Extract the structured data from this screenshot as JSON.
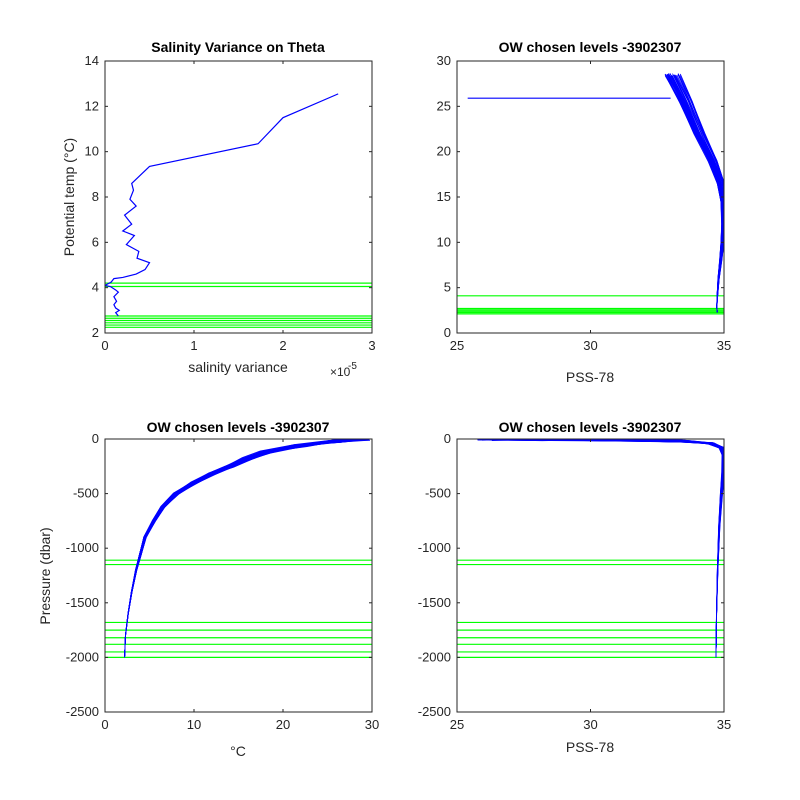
{
  "figure": {
    "background": "#ffffff",
    "axis_color": "#262626"
  },
  "chart_data": [
    {
      "type": "line",
      "title": "Salinity Variance on Theta",
      "xlabel": "salinity variance",
      "ylabel": "Potential temp (°C)",
      "xlim": [
        0,
        3
      ],
      "ylim": [
        2,
        14
      ],
      "xticks": [
        0,
        1,
        2,
        3
      ],
      "xtick_labels": [
        "0",
        "1",
        "2",
        "3"
      ],
      "yticks": [
        2,
        4,
        6,
        8,
        10,
        12,
        14
      ],
      "ytick_labels": [
        "2",
        "4",
        "6",
        "8",
        "10",
        "12",
        "14"
      ],
      "x_exponent_base": "×10",
      "x_exponent_power": "-5",
      "grid": false,
      "series": [
        {
          "color": "#0000ff",
          "x": [
            0.15,
            0.12,
            0.16,
            0.12,
            0.1,
            0.13,
            0.1,
            0.15,
            0.12,
            0.06,
            0.0,
            0.07,
            0.1,
            0.2,
            0.35,
            0.45,
            0.5,
            0.36,
            0.38,
            0.24,
            0.33,
            0.2,
            0.3,
            0.22,
            0.35,
            0.28,
            0.32,
            0.3,
            0.5,
            1.72,
            2.0,
            2.62
          ],
          "y": [
            2.75,
            2.9,
            3.0,
            3.1,
            3.25,
            3.4,
            3.6,
            3.8,
            3.9,
            4.05,
            4.1,
            4.25,
            4.4,
            4.45,
            4.6,
            4.8,
            5.1,
            5.3,
            5.6,
            5.9,
            6.3,
            6.5,
            6.8,
            7.2,
            7.6,
            7.9,
            8.3,
            8.6,
            9.35,
            10.35,
            11.5,
            12.55
          ]
        }
      ],
      "hlines": {
        "color": "#00ff00",
        "values": [
          2.25,
          2.35,
          2.45,
          2.55,
          2.65,
          2.75,
          4.05,
          4.2
        ]
      }
    },
    {
      "type": "line",
      "title": "OW chosen levels -3902307",
      "xlabel": "PSS-78",
      "ylabel": "",
      "xlim": [
        25,
        35
      ],
      "ylim": [
        0,
        30
      ],
      "xticks": [
        25,
        30,
        35
      ],
      "xtick_labels": [
        "25",
        "30",
        "35"
      ],
      "yticks": [
        0,
        5,
        10,
        15,
        20,
        25,
        30
      ],
      "ytick_labels": [
        "0",
        "5",
        "10",
        "15",
        "20",
        "25",
        "30"
      ],
      "grid": false,
      "series": [
        {
          "color": "#0000ff",
          "profile_count": 36,
          "x": [
            34.75,
            34.73,
            34.75,
            34.8,
            34.88,
            34.95,
            35.0,
            35.0,
            34.9,
            34.6,
            34.1,
            33.6,
            33.1
          ],
          "y": [
            2.3,
            2.8,
            4.0,
            6.0,
            8.0,
            10.0,
            12.0,
            14.5,
            16.5,
            19.0,
            22.0,
            25.5,
            28.5
          ]
        },
        {
          "color": "#0000ff",
          "x": [
            25.4,
            33.0
          ],
          "y": [
            25.9,
            25.9
          ]
        }
      ],
      "hlines": {
        "color": "#00ff00",
        "values": [
          2.1,
          2.25,
          2.4,
          2.55,
          2.7,
          4.1
        ]
      }
    },
    {
      "type": "line",
      "title": "OW chosen levels -3902307",
      "xlabel": "°C",
      "ylabel": "Pressure (dbar)",
      "xlim": [
        0,
        30
      ],
      "ylim": [
        -2500,
        0
      ],
      "xticks": [
        0,
        10,
        20,
        30
      ],
      "xtick_labels": [
        "0",
        "10",
        "20",
        "30"
      ],
      "yticks": [
        -2500,
        -2000,
        -1500,
        -1000,
        -500,
        0
      ],
      "ytick_labels": [
        "-2500",
        "-2000",
        "-1500",
        "-1000",
        "-500",
        "0"
      ],
      "grid": false,
      "series": [
        {
          "color": "#0000ff",
          "profile_count": 36,
          "x": [
            2.2,
            2.3,
            2.6,
            3.0,
            3.5,
            4.0,
            4.5,
            5.5,
            6.5,
            8.0,
            10.0,
            12.0,
            14.0,
            16.0,
            18.0,
            22.0,
            26.0,
            29.0
          ],
          "y": [
            -2000,
            -1800,
            -1600,
            -1400,
            -1200,
            -1050,
            -900,
            -750,
            -620,
            -500,
            -400,
            -320,
            -250,
            -180,
            -120,
            -60,
            -20,
            0
          ]
        }
      ],
      "hlines": {
        "color": "#00ff00",
        "values": [
          -2000,
          -1950,
          -1880,
          -1820,
          -1750,
          -1680,
          -1150,
          -1110
        ]
      }
    },
    {
      "type": "line",
      "title": "OW chosen levels -3902307",
      "xlabel": "PSS-78",
      "ylabel": "",
      "xlim": [
        25,
        35
      ],
      "ylim": [
        -2500,
        0
      ],
      "xticks": [
        25,
        30,
        35
      ],
      "xtick_labels": [
        "25",
        "30",
        "35"
      ],
      "yticks": [
        -2500,
        -2000,
        -1500,
        -1000,
        -500,
        0
      ],
      "ytick_labels": [
        "-2500",
        "-2000",
        "-1500",
        "-1000",
        "-500",
        "0"
      ],
      "grid": false,
      "series": [
        {
          "color": "#0000ff",
          "profile_count": 36,
          "x": [
            34.7,
            34.72,
            34.76,
            34.82,
            34.9,
            34.97,
            35.0,
            34.9,
            34.5,
            33.5,
            31.0,
            28.0,
            26.0
          ],
          "y": [
            -2000,
            -1600,
            -1200,
            -800,
            -500,
            -300,
            -150,
            -80,
            -40,
            -20,
            -10,
            -5,
            -2
          ]
        }
      ],
      "hlines": {
        "color": "#00ff00",
        "values": [
          -2000,
          -1950,
          -1880,
          -1820,
          -1750,
          -1680,
          -1150,
          -1110
        ]
      }
    }
  ]
}
